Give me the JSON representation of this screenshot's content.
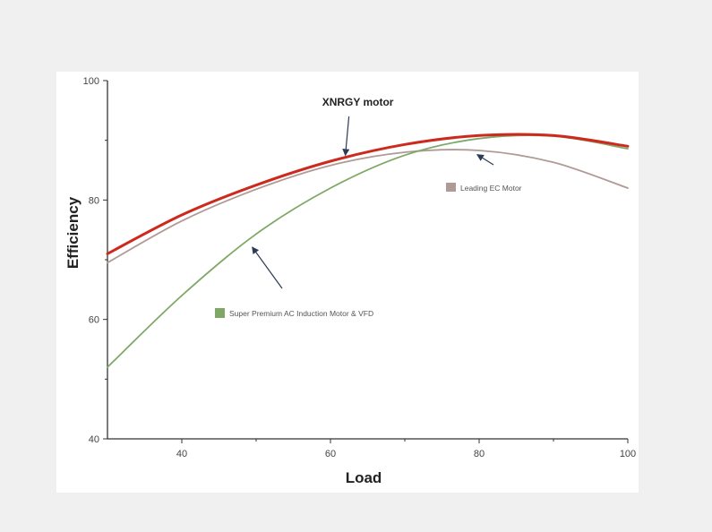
{
  "chart_data": {
    "type": "line",
    "title": "",
    "xlabel": "Load",
    "ylabel": "Efficiency",
    "xlim": [
      30,
      100
    ],
    "ylim": [
      40,
      100
    ],
    "x_ticks": [
      40,
      60,
      80,
      100
    ],
    "x_tick_labels": [
      "40",
      "60",
      "80",
      "100"
    ],
    "y_ticks": [
      40,
      60,
      80,
      100
    ],
    "grid": false,
    "series": [
      {
        "name": "XNRGY motor",
        "color": "#cc2a1e",
        "x": [
          30,
          40,
          50,
          60,
          70,
          80,
          90,
          100
        ],
        "y": [
          71,
          77.5,
          82.5,
          86.5,
          89.3,
          90.8,
          90.8,
          89
        ]
      },
      {
        "name": "Leading EC Motor",
        "color": "#b09a96",
        "x": [
          30,
          40,
          50,
          60,
          70,
          80,
          90,
          100
        ],
        "y": [
          69.5,
          76.5,
          81.8,
          85.8,
          88,
          88.3,
          86.3,
          82
        ]
      },
      {
        "name": "Super Premium AC Induction Motor & VFD",
        "color": "#7fa867",
        "x": [
          30,
          40,
          50,
          60,
          70,
          80,
          90,
          100
        ],
        "y": [
          52,
          64,
          74.3,
          82,
          87.5,
          90.3,
          90.7,
          88.6
        ]
      }
    ],
    "annotations": [
      {
        "text": "XNRGY motor",
        "x": 62,
        "y": 87.2
      },
      {
        "text": "Leading EC Motor",
        "x": 79.5,
        "y": 88.2
      },
      {
        "text": "Super Premium AC Induction Motor & VFD",
        "x": 49,
        "y": 73
      }
    ]
  }
}
